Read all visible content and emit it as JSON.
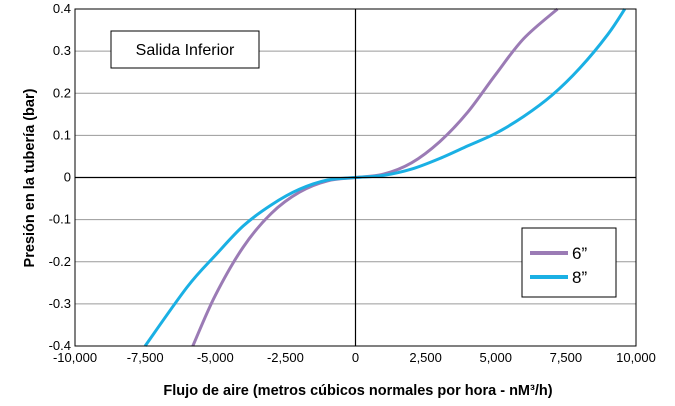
{
  "chart_data": {
    "type": "line",
    "title": "",
    "annotation": "Salida Inferior",
    "xlabel": "Flujo de aire (metros cúbicos normales por hora - nM³/h)",
    "ylabel": "Presión en la tubería (bar)",
    "xlim": [
      -10000,
      10000
    ],
    "ylim": [
      -0.4,
      0.4
    ],
    "x_ticks": [
      -10000,
      -7500,
      -5000,
      -2500,
      0,
      2500,
      5000,
      7500,
      10000
    ],
    "x_tick_labels": [
      "-10,000",
      "-7,500",
      "-5,000",
      "-2,500",
      "0",
      "2,500",
      "5,000",
      "7,500",
      "10,000"
    ],
    "y_ticks": [
      -0.4,
      -0.3,
      -0.2,
      -0.1,
      0,
      0.1,
      0.2,
      0.3,
      0.4
    ],
    "y_tick_labels": [
      "-0.4",
      "-0.3",
      "-0.2",
      "-0.1",
      "0",
      "0.1",
      "0.2",
      "0.3",
      "0.4"
    ],
    "grid": true,
    "legend_position": "lower-right",
    "series": [
      {
        "name": "6”",
        "color": "#9b7bb5",
        "x": [
          -5800,
          -5000,
          -4000,
          -3000,
          -2000,
          -1000,
          0,
          1000,
          2000,
          3000,
          4000,
          5000,
          6000,
          7200
        ],
        "y": [
          -0.4,
          -0.28,
          -0.165,
          -0.085,
          -0.035,
          -0.008,
          0,
          0.008,
          0.035,
          0.085,
          0.155,
          0.245,
          0.33,
          0.4
        ]
      },
      {
        "name": "8”",
        "color": "#1ab0e4",
        "x": [
          -7500,
          -6000,
          -5000,
          -4000,
          -3000,
          -2000,
          -1000,
          0,
          1000,
          2000,
          3000,
          4000,
          5000,
          6000,
          7000,
          8000,
          9000,
          9600
        ],
        "y": [
          -0.4,
          -0.26,
          -0.185,
          -0.115,
          -0.065,
          -0.028,
          -0.006,
          0,
          0.005,
          0.02,
          0.045,
          0.075,
          0.105,
          0.145,
          0.195,
          0.26,
          0.34,
          0.4
        ]
      }
    ]
  }
}
